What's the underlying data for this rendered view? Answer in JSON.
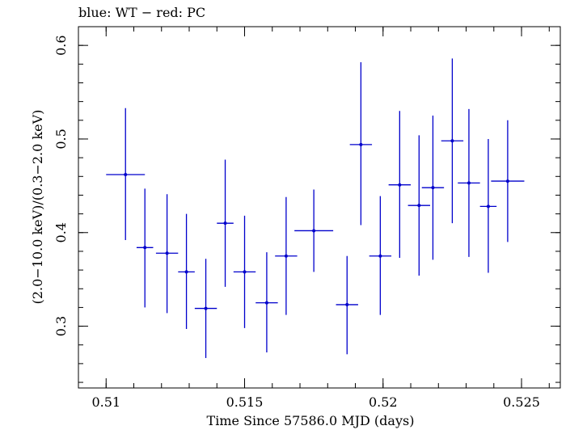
{
  "chart_data": {
    "type": "scatter",
    "title": "blue: WT − red: PC",
    "xlabel": "Time Since 57586.0 MJD (days)",
    "ylabel": "(2.0−10.0 keV)/(0.3−2.0 keV)",
    "xlim": [
      0.509,
      0.5264
    ],
    "ylim": [
      0.234,
      0.62
    ],
    "x_ticks": [
      0.51,
      0.515,
      0.52,
      0.525
    ],
    "x_tick_labels": [
      "0.51",
      "0.515",
      "0.52",
      "0.525"
    ],
    "y_ticks": [
      0.3,
      0.4,
      0.5,
      0.6
    ],
    "y_tick_labels": [
      "0.3",
      "0.4",
      "0.5",
      "0.6"
    ],
    "x_minor_step": 0.001,
    "y_minor_step": 0.02,
    "grid": false,
    "series": [
      {
        "color": "#0000cc",
        "points": [
          {
            "x": 0.5107,
            "y": 0.462,
            "xerr": 0.0007,
            "ylo": 0.392,
            "yhi": 0.533
          },
          {
            "x": 0.5114,
            "y": 0.384,
            "xerr": 0.0003,
            "ylo": 0.32,
            "yhi": 0.447
          },
          {
            "x": 0.5122,
            "y": 0.378,
            "xerr": 0.0004,
            "ylo": 0.314,
            "yhi": 0.441
          },
          {
            "x": 0.5129,
            "y": 0.358,
            "xerr": 0.0003,
            "ylo": 0.297,
            "yhi": 0.42
          },
          {
            "x": 0.5136,
            "y": 0.319,
            "xerr": 0.0004,
            "ylo": 0.266,
            "yhi": 0.372
          },
          {
            "x": 0.5143,
            "y": 0.41,
            "xerr": 0.0003,
            "ylo": 0.342,
            "yhi": 0.478
          },
          {
            "x": 0.515,
            "y": 0.358,
            "xerr": 0.0004,
            "ylo": 0.298,
            "yhi": 0.418
          },
          {
            "x": 0.5158,
            "y": 0.325,
            "xerr": 0.0004,
            "ylo": 0.272,
            "yhi": 0.379
          },
          {
            "x": 0.5165,
            "y": 0.375,
            "xerr": 0.0004,
            "ylo": 0.312,
            "yhi": 0.438
          },
          {
            "x": 0.5175,
            "y": 0.402,
            "xerr": 0.0007,
            "ylo": 0.358,
            "yhi": 0.446
          },
          {
            "x": 0.5187,
            "y": 0.323,
            "xerr": 0.0004,
            "ylo": 0.27,
            "yhi": 0.375
          },
          {
            "x": 0.5192,
            "y": 0.494,
            "xerr": 0.0004,
            "ylo": 0.408,
            "yhi": 0.582
          },
          {
            "x": 0.5199,
            "y": 0.375,
            "xerr": 0.0004,
            "ylo": 0.312,
            "yhi": 0.439
          },
          {
            "x": 0.5206,
            "y": 0.451,
            "xerr": 0.0004,
            "ylo": 0.373,
            "yhi": 0.53
          },
          {
            "x": 0.5213,
            "y": 0.429,
            "xerr": 0.0004,
            "ylo": 0.354,
            "yhi": 0.504
          },
          {
            "x": 0.5218,
            "y": 0.448,
            "xerr": 0.0004,
            "ylo": 0.371,
            "yhi": 0.525
          },
          {
            "x": 0.5225,
            "y": 0.498,
            "xerr": 0.0004,
            "ylo": 0.41,
            "yhi": 0.586
          },
          {
            "x": 0.5231,
            "y": 0.453,
            "xerr": 0.0004,
            "ylo": 0.374,
            "yhi": 0.532
          },
          {
            "x": 0.5238,
            "y": 0.428,
            "xerr": 0.0003,
            "ylo": 0.357,
            "yhi": 0.5
          },
          {
            "x": 0.5245,
            "y": 0.455,
            "xerr": 0.0006,
            "ylo": 0.39,
            "yhi": 0.52
          }
        ]
      }
    ]
  }
}
